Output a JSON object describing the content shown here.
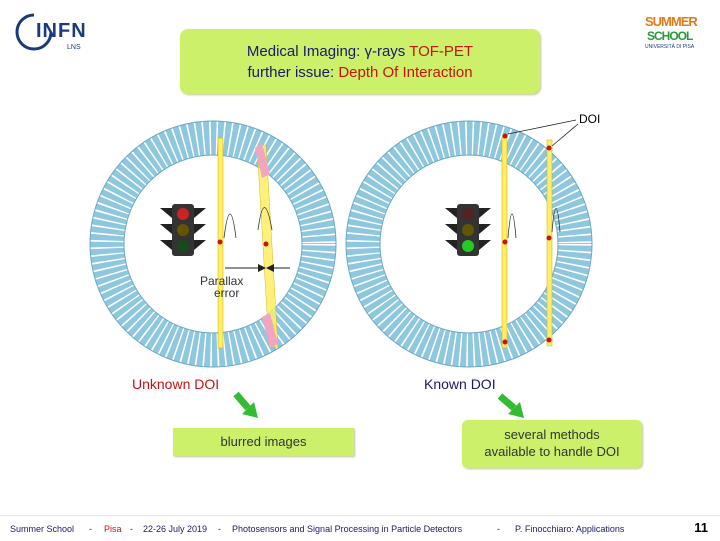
{
  "logos": {
    "left_main": "INFN",
    "left_sub": "LNS",
    "right_main": "SUMMER",
    "right_sub": "SCHOOL",
    "right_small": "UNIVERSITÀ DI PISA"
  },
  "title": {
    "line1_prefix": "Medical Imaging: γ-rays ",
    "line1_highlight": "TOF-PET",
    "line2_prefix": "further issue: ",
    "line2_highlight": "Depth Of Interaction"
  },
  "figure": {
    "doi_label": "DOI",
    "parallax_label_1": "Parallax",
    "parallax_label_2": "error"
  },
  "labels": {
    "unknown_doi": "Unknown DOI",
    "known_doi": "Known DOI",
    "blurred_images": "blurred images",
    "methods_line1": "several methods",
    "methods_line2": "available to handle DOI"
  },
  "footer": {
    "school": "Summer School",
    "sep1": "-",
    "location": "Pisa",
    "sep2": "-",
    "dates": "22-26 July 2019",
    "sep3": "-",
    "topic": "Photosensors and Signal Processing in Particle Detectors",
    "sep4": "-",
    "author": "P. Finocchiaro: Applications",
    "page": "11"
  },
  "colors": {
    "title_box": "#ccf06a",
    "title_text": "#1a1a66",
    "highlight": "#cc1111",
    "ring": "#8ec7de",
    "crystal": "#ffee66",
    "arrow": "#33bb33"
  }
}
